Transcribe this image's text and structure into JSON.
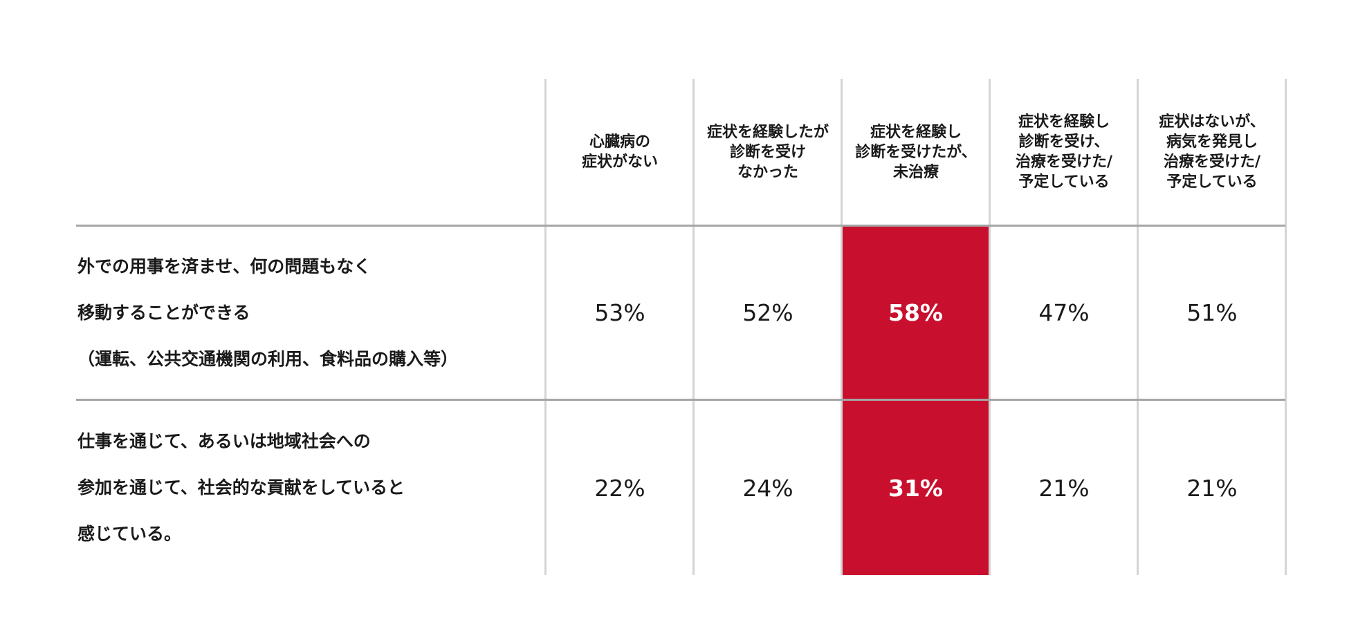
{
  "chart_data": {
    "type": "table",
    "columns": [
      "心臓病の\n症状がない",
      "症状を経験したが\n診断を受け\nなかった",
      "症状を経験し\n診断を受けたが、\n未治療",
      "症状を経験し\n診断を受け、\n治療を受けた/\n予定している",
      "症状はないが、\n病気を発見し\n治療を受けた/\n予定している"
    ],
    "rows": [
      {
        "label_lines": [
          "外での用事を済ませ、何の問題もなく",
          "移動することができる",
          "（運転、公共交通機関の利用、食料品の購入等）"
        ],
        "values": [
          "53%",
          "52%",
          "58%",
          "47%",
          "51%"
        ],
        "numeric": [
          53,
          52,
          58,
          47,
          51
        ]
      },
      {
        "label_lines": [
          "仕事を通じて、あるいは地域社会への",
          "参加を通じて、社会的な貢献をしていると",
          "感じている。"
        ],
        "values": [
          "22%",
          "24%",
          "31%",
          "21%",
          "21%"
        ],
        "numeric": [
          22,
          24,
          31,
          21,
          21
        ]
      }
    ],
    "highlight_column": 2,
    "highlight_color": "#c8102e",
    "divider_color": "#a5a5a5"
  }
}
